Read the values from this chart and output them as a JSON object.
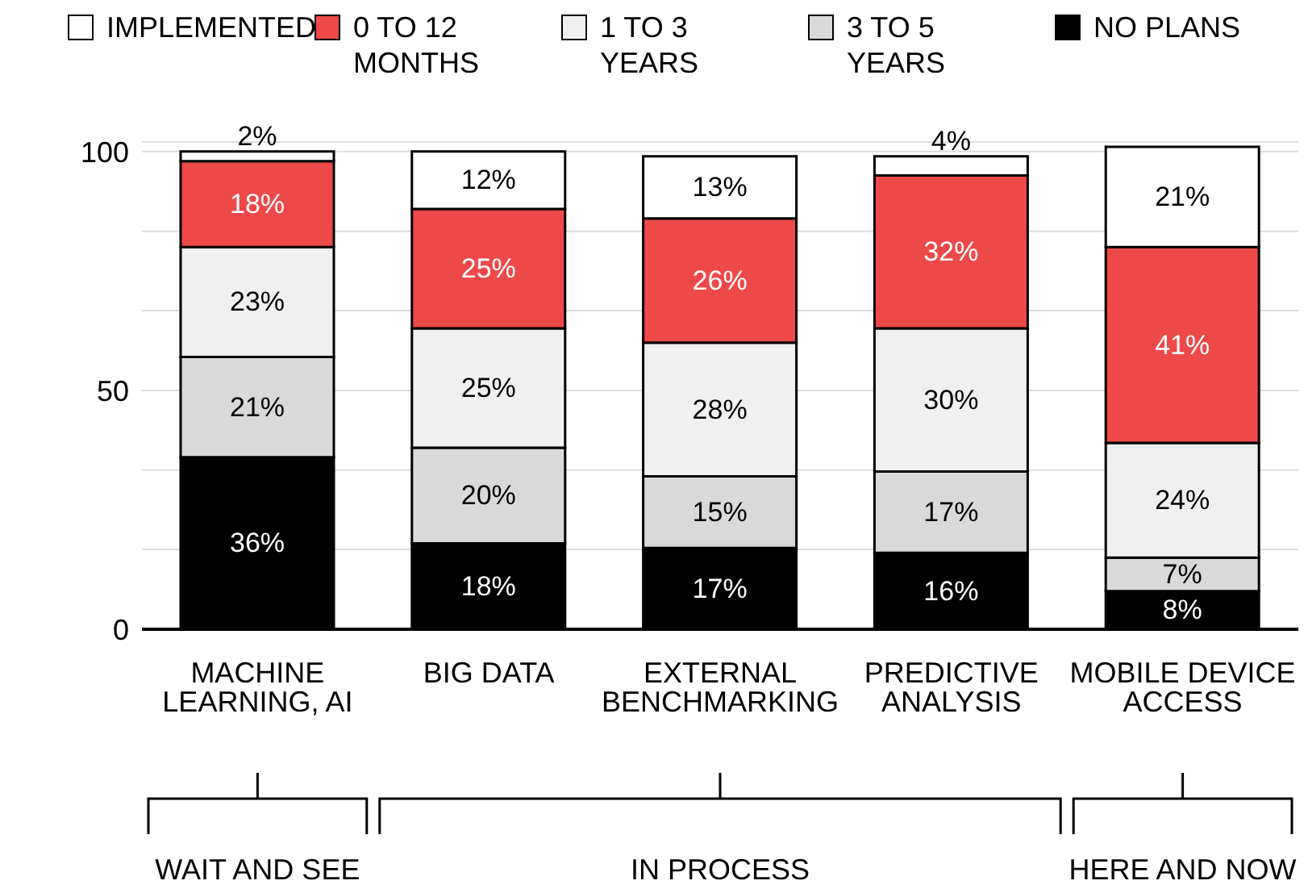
{
  "chart_data": {
    "type": "bar",
    "stacked": true,
    "categories": [
      "MACHINE LEARNING, AI",
      "BIG DATA",
      "EXTERNAL BENCHMARKING",
      "PREDICTIVE ANALYSIS",
      "MOBILE DEVICE ACCESS"
    ],
    "series": [
      {
        "name": "NO PLANS",
        "color": "#000000",
        "values": [
          36,
          18,
          17,
          16,
          8
        ],
        "value_labels": [
          "36%",
          "18%",
          "17%",
          "16%",
          "8%"
        ]
      },
      {
        "name": "3 TO 5 YEARS",
        "color": "#d9d9d9",
        "values": [
          21,
          20,
          15,
          17,
          7
        ],
        "value_labels": [
          "21%",
          "20%",
          "15%",
          "17%",
          "7%"
        ]
      },
      {
        "name": "1 TO 3 YEARS",
        "color": "#f0f0f0",
        "values": [
          23,
          25,
          28,
          30,
          24
        ],
        "value_labels": [
          "23%",
          "25%",
          "28%",
          "30%",
          "24%"
        ]
      },
      {
        "name": "0 TO 12 MONTHS",
        "color": "#ee4949",
        "values": [
          18,
          25,
          26,
          32,
          41
        ],
        "value_labels": [
          "18%",
          "25%",
          "26%",
          "32%",
          "41%"
        ]
      },
      {
        "name": "IMPLEMENTED",
        "color": "#ffffff",
        "values": [
          2,
          12,
          13,
          4,
          21
        ],
        "value_labels": [
          "2%",
          "12%",
          "13%",
          "4%",
          "21%"
        ]
      }
    ],
    "ylim": [
      0,
      102
    ],
    "yticks": [
      0,
      {
        "value": 16.7,
        "label": null
      },
      {
        "value": 33.3,
        "label": null
      },
      50,
      {
        "value": 66.7,
        "label": null
      },
      {
        "value": 83.3,
        "label": null
      },
      100
    ],
    "grid": "y",
    "legend": "top",
    "annotations": [
      "WAIT AND SEE",
      "IN PROCESS",
      "HERE AND NOW"
    ]
  }
}
